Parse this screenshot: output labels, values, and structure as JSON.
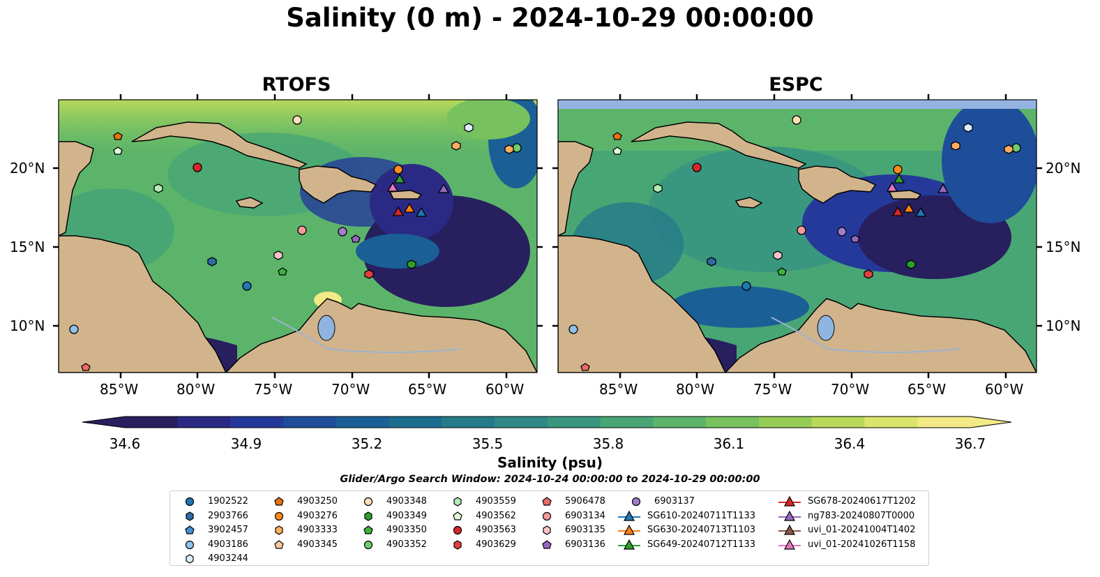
{
  "title": "Salinity (0 m) - 2024-10-29 00:00:00",
  "panels": [
    {
      "title": "RTOFS"
    },
    {
      "title": "ESPC"
    }
  ],
  "axes": {
    "lon_ticks": [
      "85°W",
      "80°W",
      "75°W",
      "70°W",
      "65°W",
      "60°W"
    ],
    "lat_ticks": [
      "20°N",
      "15°N",
      "10°N"
    ]
  },
  "colorbar": {
    "label": "Salinity (psu)",
    "ticks": [
      "34.6",
      "34.9",
      "35.2",
      "35.5",
      "35.8",
      "36.1",
      "36.4",
      "36.7"
    ],
    "colors": [
      "#271f5e",
      "#2a2a85",
      "#24399a",
      "#1e4d9a",
      "#1a5f95",
      "#1d6d8f",
      "#267b8a",
      "#2f8986",
      "#3a977f",
      "#48a675",
      "#5cb46b",
      "#77c15f",
      "#97cd57",
      "#b8d95a",
      "#dbe56d",
      "#f2ea86"
    ]
  },
  "search_window": "Glider/Argo Search Window: 2024-10-24 00:00:00 to 2024-10-29 00:00:00",
  "legend": [
    {
      "label": "1902522",
      "shape": "circle",
      "color": "#1f77b4"
    },
    {
      "label": "2903766",
      "shape": "hexagon",
      "color": "#2b6ca8"
    },
    {
      "label": "3902457",
      "shape": "pentagon",
      "color": "#4a8fd0"
    },
    {
      "label": "4903186",
      "shape": "circle",
      "color": "#8fc2ea"
    },
    {
      "label": "4903244",
      "shape": "hexagon",
      "color": "#dbeeff"
    },
    {
      "label": "4903250",
      "shape": "pentagon",
      "color": "#e8730c"
    },
    {
      "label": "4903276",
      "shape": "circle",
      "color": "#ff8c1a"
    },
    {
      "label": "4903333",
      "shape": "hexagon",
      "color": "#ffad62"
    },
    {
      "label": "4903345",
      "shape": "pentagon",
      "color": "#ffc99a"
    },
    {
      "label": "4903348",
      "shape": "circle",
      "color": "#ffe0b8"
    },
    {
      "label": "4903349",
      "shape": "hexagon",
      "color": "#2ca02c"
    },
    {
      "label": "4903350",
      "shape": "pentagon",
      "color": "#3cb33c"
    },
    {
      "label": "4903352",
      "shape": "circle",
      "color": "#6ccf6c"
    },
    {
      "label": "4903559",
      "shape": "hexagon",
      "color": "#b4ecb4"
    },
    {
      "label": "4903562",
      "shape": "pentagon",
      "color": "#e0f7d8"
    },
    {
      "label": "4903563",
      "shape": "circle",
      "color": "#d62728"
    },
    {
      "label": "4903629",
      "shape": "hexagon",
      "color": "#e04040"
    },
    {
      "label": "5906478",
      "shape": "pentagon",
      "color": "#ee6a6a"
    },
    {
      "label": "6903134",
      "shape": "circle",
      "color": "#f59a9a"
    },
    {
      "label": "6903135",
      "shape": "hexagon",
      "color": "#ffc4c8"
    },
    {
      "label": "6903136",
      "shape": "pentagon",
      "color": "#9467bd"
    },
    {
      "label": "6903137",
      "shape": "circle",
      "color": "#a27fcc"
    },
    {
      "label": "SG610-20240711T1133",
      "shape": "triangle",
      "color": "#1f77b4"
    },
    {
      "label": "SG630-20240713T1103",
      "shape": "triangle",
      "color": "#ff7f0e"
    },
    {
      "label": "SG649-20240712T1133",
      "shape": "triangle",
      "color": "#2ca02c"
    },
    {
      "label": "SG678-20240617T1202",
      "shape": "triangle",
      "color": "#d62728"
    },
    {
      "label": "ng783-20240807T0000",
      "shape": "triangle",
      "color": "#9467bd"
    },
    {
      "label": "uvi_01-20241004T1402",
      "shape": "triangle",
      "color": "#8c564b"
    },
    {
      "label": "uvi_01-20241026T1158",
      "shape": "triangle",
      "color": "#e377c2"
    }
  ],
  "colors": {
    "land": "#d2b48c",
    "lake": "#8fb4e0",
    "river": "#9db3d0",
    "nodata": "#93b3e3",
    "coast": "#000000"
  }
}
